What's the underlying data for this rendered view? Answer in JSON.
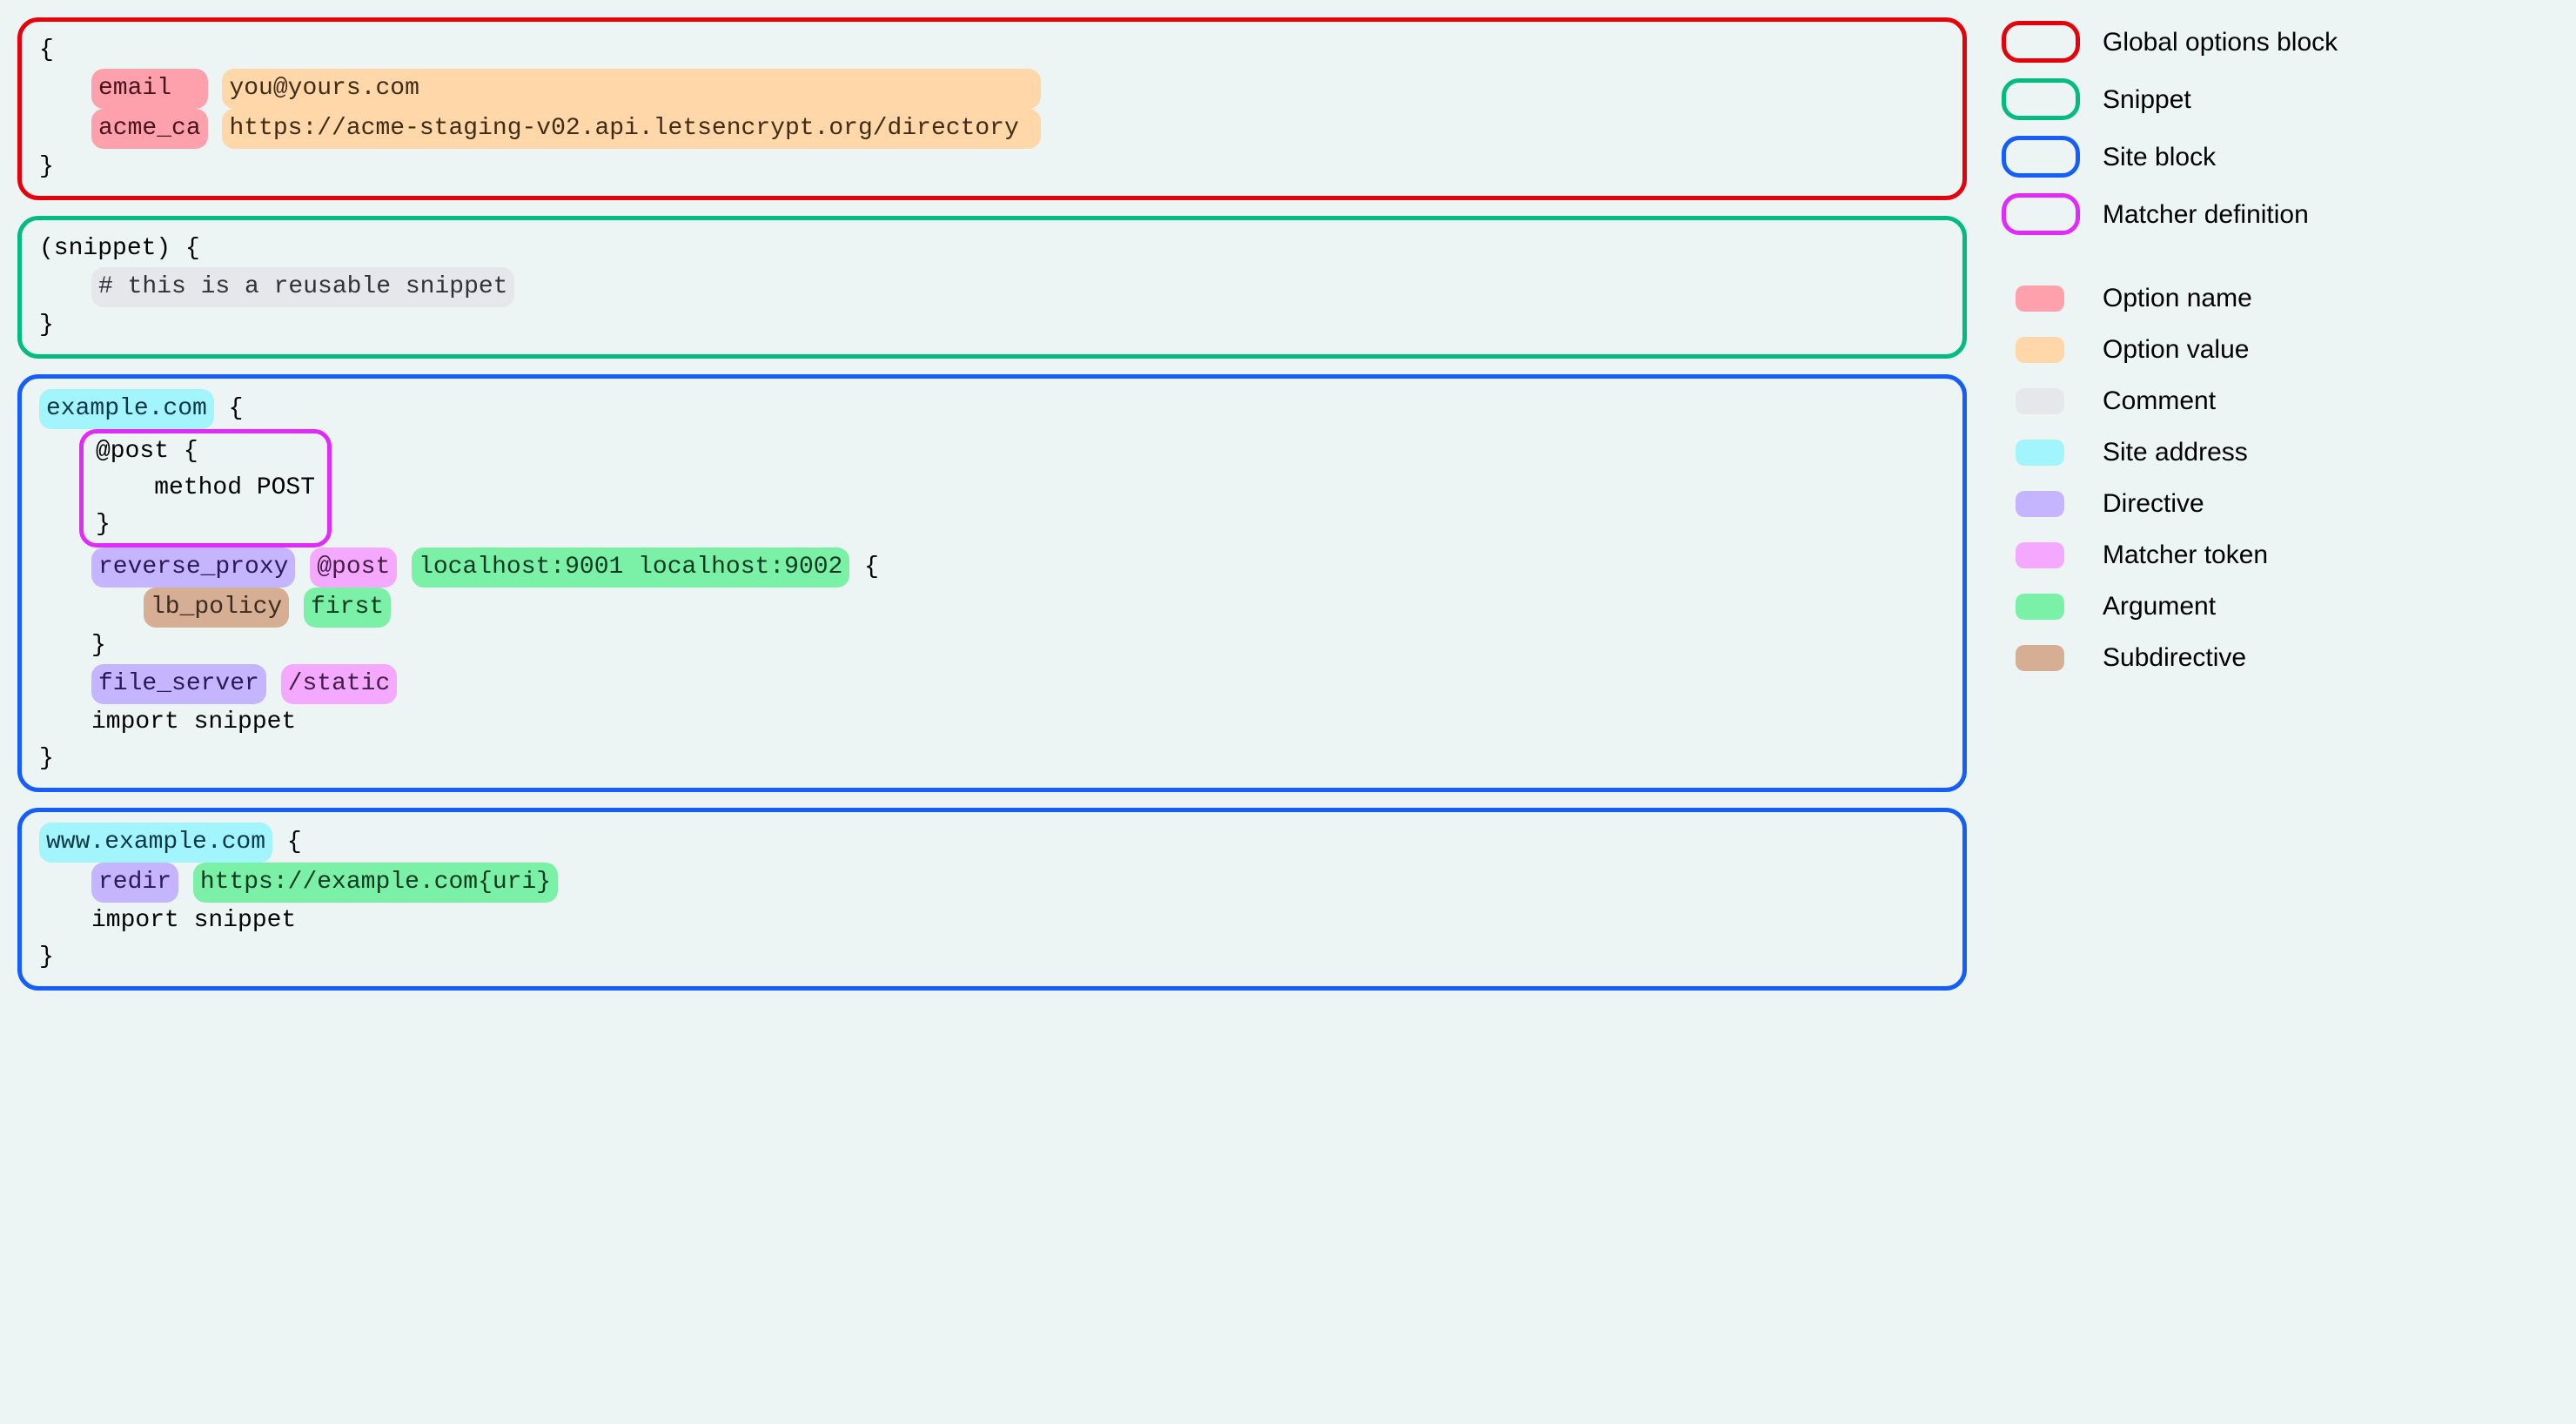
{
  "colors": {
    "background": "#ecf5f4",
    "border_red": "#e7000b",
    "border_teal": "#00bc7d",
    "border_blue": "#155dfc",
    "border_magenta": "#e12afb",
    "fill_option_name": "#ffa1ad",
    "fill_option_value": "#ffd7a8",
    "fill_comment": "#e5e7eb",
    "fill_site_address": "#a2f4fd",
    "fill_directive": "#c5b4ff",
    "fill_matcher_token": "#f4a8ff",
    "fill_argument": "#7af1a7",
    "fill_subdirective": "#d5ae94"
  },
  "typography": {
    "code_font": "Menlo, Consolas, monospace",
    "code_fontsize": 28,
    "legend_font": "-apple-system, sans-serif",
    "legend_fontsize": 30
  },
  "global_block": {
    "open": "{",
    "close": "}",
    "opt1_name": "email  ",
    "opt1_value": "you@yours.com                                          ",
    "opt2_name": "acme_ca",
    "opt2_value": "https://acme-staging-v02.api.letsencrypt.org/directory "
  },
  "snippet_block": {
    "header": "(snippet) {",
    "comment": "# this is a reusable snippet",
    "close": "}"
  },
  "site1": {
    "address": "example.com",
    "brace_open": " {",
    "matcher": {
      "line1": "@post {",
      "line2": "    method POST",
      "line3": "}"
    },
    "proxy": {
      "directive": "reverse_proxy",
      "matcher": "@post",
      "args": "localhost:9001 localhost:9002",
      "brace": " {",
      "sub_name": "lb_policy",
      "sub_arg": "first",
      "close": "}"
    },
    "fileserver": {
      "directive": "file_server",
      "matcher": "/static"
    },
    "import_line": "import snippet",
    "close": "}"
  },
  "site2": {
    "address": "www.example.com",
    "brace_open": " {",
    "redir_directive": "redir",
    "redir_arg": "https://example.com{uri}",
    "import_line": "import snippet",
    "close": "}"
  },
  "legend": {
    "boxes": {
      "red": "Global options block",
      "teal": "Snippet",
      "blue": "Site block",
      "magenta": "Matcher definition"
    },
    "fills": {
      "option_name": "Option name",
      "option_value": "Option value",
      "comment": "Comment",
      "site_address": "Site address",
      "directive": "Directive",
      "matcher_token": "Matcher token",
      "argument": "Argument",
      "subdirective": "Subdirective"
    }
  }
}
